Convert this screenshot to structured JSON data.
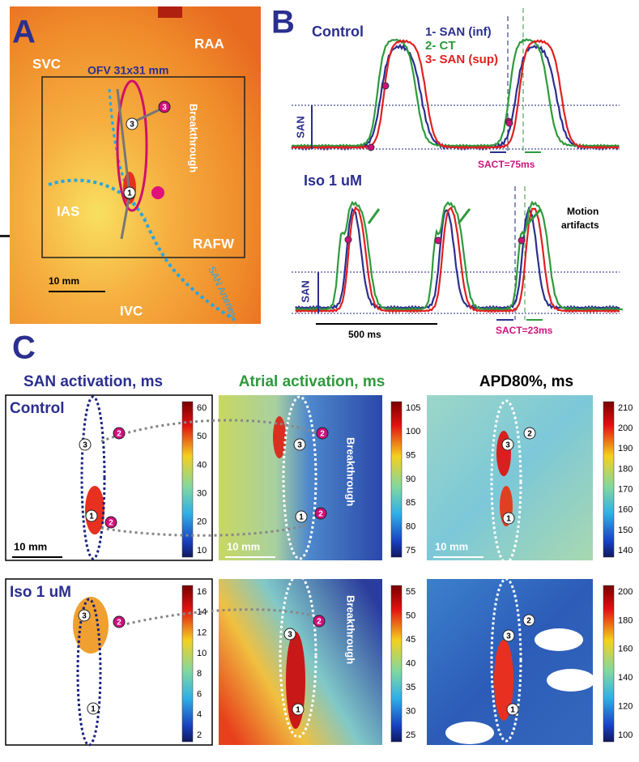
{
  "panel_a": {
    "label": "A",
    "regions": [
      "SVC",
      "RAA",
      "IAS",
      "RAFW",
      "IVC"
    ],
    "ofv": "OFV 31x31 mm",
    "breakthrough": "Breakthrough",
    "scale": "10 mm",
    "arteries": "SAN Arteries",
    "markers": [
      "1",
      "2",
      "3"
    ]
  },
  "panel_b": {
    "label": "B",
    "control": "Control",
    "legend": [
      "1- SAN (inf)",
      "2- CT",
      "3- SAN (sup)"
    ],
    "san": "SAN",
    "sact_control": "SACT=75ms",
    "iso": "Iso 1 uM",
    "motion": [
      "Motion",
      "artifacts"
    ],
    "sact_iso": "SACT=23ms",
    "scale": "500 ms"
  },
  "panel_c": {
    "label": "C",
    "columns": [
      "SAN activation, ms",
      "Atrial activation, ms",
      "APD80%, ms"
    ],
    "rows": [
      "Control",
      "Iso 1 uM"
    ],
    "colorbars": [
      [
        [
          60,
          50,
          40,
          30,
          20,
          10
        ],
        [
          105,
          100,
          95,
          90,
          85,
          80,
          75
        ],
        [
          210,
          200,
          190,
          180,
          170,
          160,
          150,
          140
        ]
      ],
      [
        [
          16,
          14,
          12,
          10,
          8,
          6,
          4,
          2
        ],
        [
          55,
          50,
          45,
          40,
          35,
          30,
          25
        ],
        [
          200,
          180,
          160,
          140,
          120,
          100
        ]
      ]
    ]
  }
}
